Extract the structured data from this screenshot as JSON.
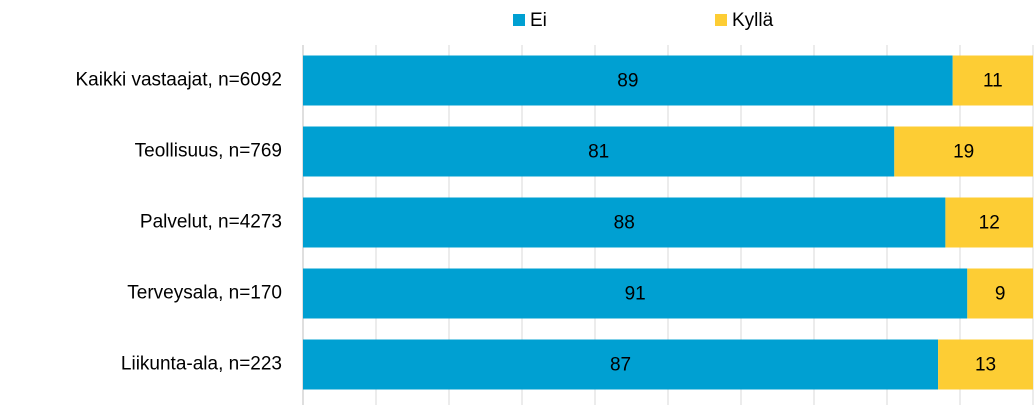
{
  "chart_data": {
    "type": "stacked_barh",
    "categories": [
      "Kaikki vastaajat, n=6092",
      "Teollisuus, n=769",
      "Palvelut, n=4273",
      "Terveysala, n=170",
      "Liikunta-ala, n=223"
    ],
    "series": [
      {
        "name": "Ei",
        "color": "#00a0d2",
        "values": [
          89,
          81,
          88,
          91,
          87
        ]
      },
      {
        "name": "Kyllä",
        "color": "#fdcd34",
        "values": [
          11,
          19,
          12,
          9,
          13
        ]
      }
    ],
    "xlim": [
      0,
      100
    ],
    "xticks": [
      0,
      10,
      20,
      30,
      40,
      50,
      60,
      70,
      80,
      90,
      100
    ],
    "grid": true,
    "legend": "top"
  }
}
